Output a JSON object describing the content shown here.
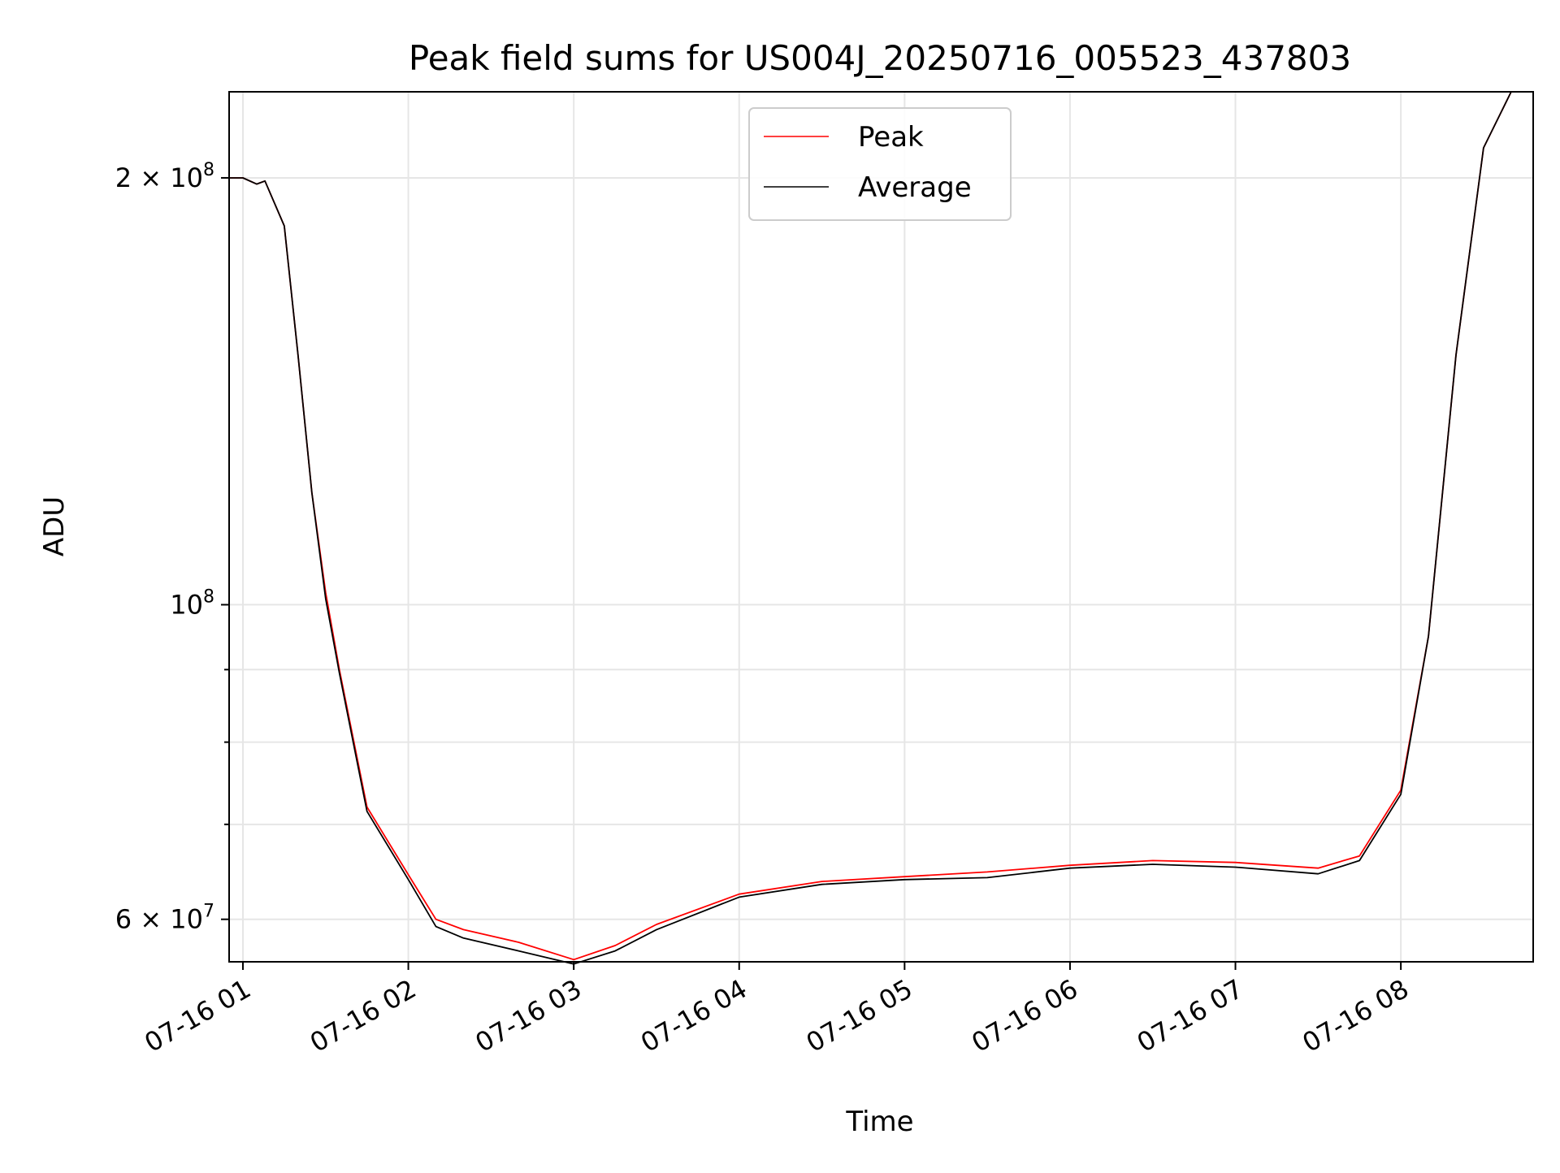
{
  "chart_data": {
    "type": "line",
    "title": "Peak field sums for US004J_20250716_005523_437803",
    "xlabel": "Time",
    "ylabel": "ADU",
    "x_axis": {
      "type": "time",
      "range": [
        "2025-07-16T00:55:00",
        "2025-07-16T08:48:00"
      ],
      "ticks": [
        {
          "value": "2025-07-16T01:00:00",
          "label": "07-16 01"
        },
        {
          "value": "2025-07-16T02:00:00",
          "label": "07-16 02"
        },
        {
          "value": "2025-07-16T03:00:00",
          "label": "07-16 03"
        },
        {
          "value": "2025-07-16T04:00:00",
          "label": "07-16 04"
        },
        {
          "value": "2025-07-16T05:00:00",
          "label": "07-16 05"
        },
        {
          "value": "2025-07-16T06:00:00",
          "label": "07-16 06"
        },
        {
          "value": "2025-07-16T07:00:00",
          "label": "07-16 07"
        },
        {
          "value": "2025-07-16T08:00:00",
          "label": "07-16 08"
        }
      ]
    },
    "y_axis": {
      "scale": "log",
      "range": [
        56000000,
        230000000
      ],
      "major_ticks": [
        {
          "value": 60000000,
          "base": "6 × 10",
          "exp": "7"
        },
        {
          "value": 100000000,
          "base": "10",
          "exp": "8"
        },
        {
          "value": 200000000,
          "base": "2 × 10",
          "exp": "8"
        }
      ],
      "minor_ticks": [
        70000000,
        80000000,
        90000000
      ]
    },
    "grid": true,
    "legend": {
      "placement": "top-center"
    },
    "series": [
      {
        "name": "Peak",
        "color": "#ff0000",
        "x": [
          "2025-07-16T00:55:00",
          "2025-07-16T01:00:00",
          "2025-07-16T01:05:00",
          "2025-07-16T01:08:00",
          "2025-07-16T01:15:00",
          "2025-07-16T01:20:00",
          "2025-07-16T01:25:00",
          "2025-07-16T01:30:00",
          "2025-07-16T01:35:00",
          "2025-07-16T01:45:00",
          "2025-07-16T02:00:00",
          "2025-07-16T02:10:00",
          "2025-07-16T02:20:00",
          "2025-07-16T02:40:00",
          "2025-07-16T03:00:00",
          "2025-07-16T03:15:00",
          "2025-07-16T03:30:00",
          "2025-07-16T04:00:00",
          "2025-07-16T04:30:00",
          "2025-07-16T05:00:00",
          "2025-07-16T05:30:00",
          "2025-07-16T06:00:00",
          "2025-07-16T06:30:00",
          "2025-07-16T07:00:00",
          "2025-07-16T07:30:00",
          "2025-07-16T07:45:00",
          "2025-07-16T08:00:00",
          "2025-07-16T08:10:00",
          "2025-07-16T08:20:00",
          "2025-07-16T08:30:00",
          "2025-07-16T08:40:00",
          "2025-07-16T08:45:00"
        ],
        "y": [
          200000000,
          200000000,
          198000000,
          199000000,
          185000000,
          150000000,
          120000000,
          102000000,
          90000000,
          72000000,
          64500000,
          60000000,
          59000000,
          57800000,
          56200000,
          57500000,
          59500000,
          62500000,
          63800000,
          64300000,
          64800000,
          65500000,
          66000000,
          65800000,
          65200000,
          66500000,
          74000000,
          95000000,
          150000000,
          210000000,
          230000000,
          230000000
        ]
      },
      {
        "name": "Average",
        "color": "#000000",
        "x": [
          "2025-07-16T00:55:00",
          "2025-07-16T01:00:00",
          "2025-07-16T01:05:00",
          "2025-07-16T01:08:00",
          "2025-07-16T01:15:00",
          "2025-07-16T01:20:00",
          "2025-07-16T01:25:00",
          "2025-07-16T01:30:00",
          "2025-07-16T01:35:00",
          "2025-07-16T01:45:00",
          "2025-07-16T02:00:00",
          "2025-07-16T02:10:00",
          "2025-07-16T02:20:00",
          "2025-07-16T02:40:00",
          "2025-07-16T03:00:00",
          "2025-07-16T03:15:00",
          "2025-07-16T03:30:00",
          "2025-07-16T04:00:00",
          "2025-07-16T04:30:00",
          "2025-07-16T05:00:00",
          "2025-07-16T05:30:00",
          "2025-07-16T06:00:00",
          "2025-07-16T06:30:00",
          "2025-07-16T07:00:00",
          "2025-07-16T07:30:00",
          "2025-07-16T07:45:00",
          "2025-07-16T08:00:00",
          "2025-07-16T08:10:00",
          "2025-07-16T08:20:00",
          "2025-07-16T08:30:00",
          "2025-07-16T08:40:00",
          "2025-07-16T08:45:00"
        ],
        "y": [
          200000000,
          200000000,
          198000000,
          199000000,
          185000000,
          150000000,
          120000000,
          101000000,
          89500000,
          71500000,
          64000000,
          59300000,
          58200000,
          57000000,
          55800000,
          57000000,
          59000000,
          62200000,
          63500000,
          64000000,
          64200000,
          65200000,
          65600000,
          65300000,
          64600000,
          66000000,
          73500000,
          95000000,
          150000000,
          210000000,
          230000000,
          230000000
        ]
      }
    ]
  }
}
